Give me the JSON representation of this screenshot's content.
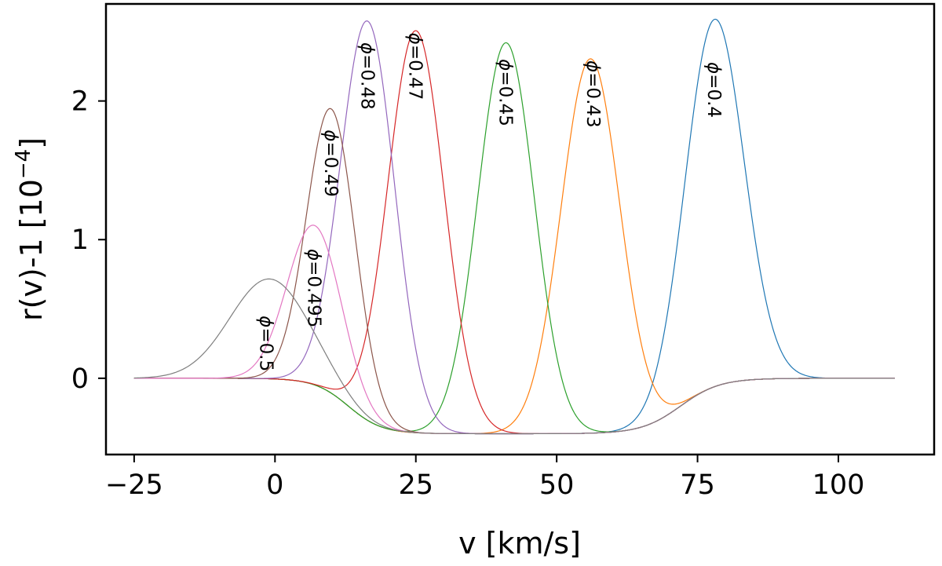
{
  "chart_data": {
    "type": "line",
    "title": "",
    "xlabel": "v [km/s]",
    "ylabel": "r(v)-1 [10",
    "ylabel_exponent": "−4",
    "ylabel_close": "]",
    "xlim": [
      -30,
      117
    ],
    "ylim": [
      -0.55,
      2.7
    ],
    "x_ticks": [
      {
        "value": -25,
        "label": "−25"
      },
      {
        "value": 0,
        "label": "0"
      },
      {
        "value": 25,
        "label": "25"
      },
      {
        "value": 50,
        "label": "50"
      },
      {
        "value": 75,
        "label": "75"
      },
      {
        "value": 100,
        "label": "100"
      }
    ],
    "y_ticks": [
      {
        "value": 0,
        "label": "0"
      },
      {
        "value": 1,
        "label": "1"
      },
      {
        "value": 2,
        "label": "2"
      }
    ],
    "x_range": [
      -25,
      110
    ],
    "trough_depth": -0.4,
    "trough_range": [
      13,
      72
    ],
    "series": [
      {
        "name": "φ=0.4",
        "phase_value": "0.4",
        "color": "#1f77b4",
        "center": 78,
        "amplitude": 2.65,
        "width": 5.2
      },
      {
        "name": "φ=0.43",
        "phase_value": "0.43",
        "color": "#ff7f0e",
        "center": 56,
        "amplitude": 2.7,
        "width": 5.2
      },
      {
        "name": "φ=0.45",
        "phase_value": "0.45",
        "color": "#2ca02c",
        "center": 41,
        "amplitude": 2.82,
        "width": 5.0
      },
      {
        "name": "φ=0.47",
        "phase_value": "0.47",
        "color": "#d62728",
        "center": 25,
        "amplitude": 2.9,
        "width": 5.0
      },
      {
        "name": "φ=0.48",
        "phase_value": "0.48",
        "color": "#9467bd",
        "center": 16.5,
        "amplitude": 2.88,
        "width": 4.8
      },
      {
        "name": "φ=0.49",
        "phase_value": "0.49",
        "color": "#8c564b",
        "center": 10,
        "amplitude": 2.05,
        "width": 4.3
      },
      {
        "name": "φ=0.495",
        "phase_value": "0.495",
        "color": "#e377c2",
        "center": 7,
        "amplitude": 1.15,
        "width": 4.8
      },
      {
        "name": "φ=0.5",
        "phase_value": "0.5",
        "color": "#7f7f7f",
        "center": -1,
        "amplitude": 0.72,
        "width": 7.0
      }
    ],
    "annotations": [
      {
        "text_prefix": "ϕ",
        "text_value": "=0.4",
        "x": 78,
        "y": 2.08
      },
      {
        "text_prefix": "ϕ",
        "text_value": "=0.43",
        "x": 56.5,
        "y": 2.05
      },
      {
        "text_prefix": "ϕ",
        "text_value": "=0.45",
        "x": 41,
        "y": 2.06
      },
      {
        "text_prefix": "ϕ",
        "text_value": "=0.47",
        "x": 25,
        "y": 2.25
      },
      {
        "text_prefix": "ϕ",
        "text_value": "=0.48",
        "x": 16.5,
        "y": 2.18
      },
      {
        "text_prefix": "ϕ",
        "text_value": "=0.49",
        "x": 10,
        "y": 1.55
      },
      {
        "text_prefix": "ϕ",
        "text_value": "=0.495",
        "x": 7,
        "y": 0.65
      },
      {
        "text_prefix": "ϕ",
        "text_value": "=0.5",
        "x": -1.5,
        "y": 0.25
      }
    ]
  }
}
